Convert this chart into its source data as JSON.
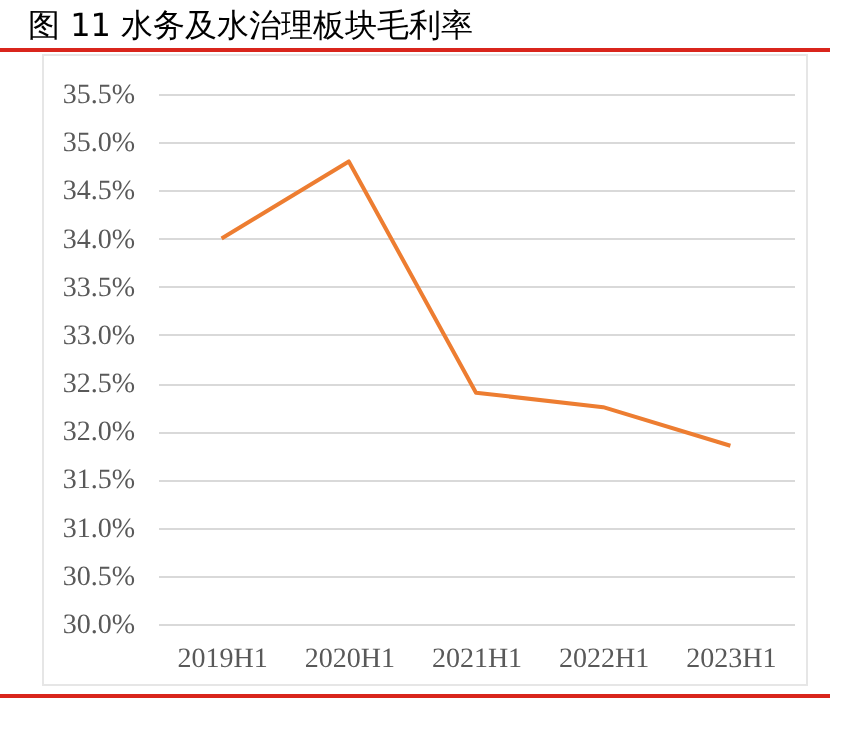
{
  "chart_data": {
    "type": "line",
    "title": "图 11 水务及水治理板块毛利率",
    "categories": [
      "2019H1",
      "2020H1",
      "2021H1",
      "2022H1",
      "2023H1"
    ],
    "series": [
      {
        "color": "#ed7d31",
        "values": [
          34.0,
          34.8,
          32.4,
          32.25,
          31.85
        ]
      }
    ],
    "ylim": [
      30.0,
      35.5
    ],
    "yticks": [
      {
        "value": 30.0,
        "label": "30.0%"
      },
      {
        "value": 30.5,
        "label": "30.5%"
      },
      {
        "value": 31.0,
        "label": "31.0%"
      },
      {
        "value": 31.5,
        "label": "31.5%"
      },
      {
        "value": 32.0,
        "label": "32.0%"
      },
      {
        "value": 32.5,
        "label": "32.5%"
      },
      {
        "value": 33.0,
        "label": "33.0%"
      },
      {
        "value": 33.5,
        "label": "33.5%"
      },
      {
        "value": 34.0,
        "label": "34.0%"
      },
      {
        "value": 34.5,
        "label": "34.5%"
      },
      {
        "value": 35.0,
        "label": "35.0%"
      },
      {
        "value": 35.5,
        "label": "35.5%"
      }
    ],
    "grid": "y",
    "legend": false,
    "marker": "none",
    "line_style": "solid"
  }
}
